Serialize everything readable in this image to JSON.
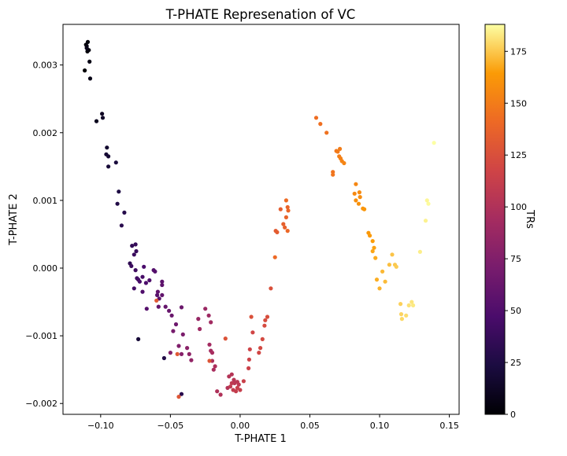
{
  "chart_data": {
    "type": "scatter",
    "title": "T-PHATE Represenation of VC",
    "xlabel": "T-PHATE 1",
    "ylabel": "T-PHATE 2",
    "xlim": [
      -0.127,
      0.157
    ],
    "ylim": [
      -0.00216,
      0.0036
    ],
    "xticks": [
      -0.1,
      -0.05,
      0.0,
      0.05,
      0.1,
      0.15
    ],
    "xtick_labels": [
      "−0.10",
      "−0.05",
      "0.00",
      "0.05",
      "0.10",
      "0.15"
    ],
    "yticks": [
      -0.002,
      -0.001,
      0.0,
      0.001,
      0.002,
      0.003
    ],
    "ytick_labels": [
      "−0.002",
      "−0.001",
      "0.000",
      "0.001",
      "0.002",
      "0.003"
    ],
    "grid": false,
    "colormap": "inferno",
    "colorbar": {
      "label": "TRs",
      "range": [
        0,
        188
      ],
      "ticks": [
        0,
        25,
        50,
        75,
        100,
        125,
        150,
        175
      ],
      "tick_labels": [
        "0",
        "25",
        "50",
        "75",
        "100",
        "125",
        "150",
        "175"
      ]
    },
    "points": [
      [
        -0.1114,
        0.00292,
        0
      ],
      [
        -0.1105,
        0.0033,
        1
      ],
      [
        -0.1095,
        0.0032,
        2
      ],
      [
        -0.1092,
        0.00334,
        3
      ],
      [
        -0.1085,
        0.00322,
        4
      ],
      [
        -0.11,
        0.00328,
        5
      ],
      [
        -0.108,
        0.00305,
        6
      ],
      [
        -0.1075,
        0.0028,
        7
      ],
      [
        -0.11,
        0.00325,
        8
      ],
      [
        -0.103,
        0.00217,
        10
      ],
      [
        -0.099,
        0.00228,
        12
      ],
      [
        -0.0985,
        0.00222,
        14
      ],
      [
        -0.0955,
        0.00178,
        16
      ],
      [
        -0.096,
        0.00168,
        18
      ],
      [
        -0.0945,
        0.00165,
        19
      ],
      [
        -0.0945,
        0.0015,
        20
      ],
      [
        -0.089,
        0.00156,
        22
      ],
      [
        -0.087,
        0.00113,
        25
      ],
      [
        -0.088,
        0.00095,
        27
      ],
      [
        -0.083,
        0.00082,
        29
      ],
      [
        -0.085,
        0.00063,
        31
      ],
      [
        -0.079,
        7e-05,
        33
      ],
      [
        -0.0775,
        0.00033,
        35
      ],
      [
        -0.075,
        0.00035,
        37
      ],
      [
        -0.0745,
        0.00025,
        38
      ],
      [
        -0.076,
        0.0002,
        39
      ],
      [
        -0.078,
        3e-05,
        40
      ],
      [
        -0.075,
        -3e-05,
        41
      ],
      [
        -0.074,
        -0.00015,
        42
      ],
      [
        -0.076,
        -0.0003,
        43
      ],
      [
        -0.073,
        -0.00017,
        44
      ],
      [
        -0.07,
        -0.00013,
        45
      ],
      [
        -0.072,
        -0.0002,
        46
      ],
      [
        -0.069,
        2e-05,
        47
      ],
      [
        -0.0675,
        -0.00022,
        48
      ],
      [
        -0.065,
        -0.00018,
        49
      ],
      [
        -0.07,
        -0.00035,
        50
      ],
      [
        -0.062,
        -3e-05,
        51
      ],
      [
        -0.061,
        -5e-05,
        52
      ],
      [
        -0.067,
        -0.0006,
        53
      ],
      [
        -0.0595,
        -0.0004,
        54
      ],
      [
        -0.058,
        -0.00045,
        55
      ],
      [
        -0.056,
        -0.0002,
        56
      ],
      [
        -0.056,
        -0.00025,
        57
      ],
      [
        -0.059,
        -0.00035,
        58
      ],
      [
        -0.056,
        -0.0004,
        59
      ],
      [
        -0.0585,
        -0.00057,
        60
      ],
      [
        -0.0535,
        -0.00057,
        61
      ],
      [
        -0.051,
        -0.00063,
        62
      ],
      [
        -0.049,
        -0.0007,
        63
      ],
      [
        -0.042,
        -0.00058,
        64
      ],
      [
        -0.046,
        -0.00083,
        65
      ],
      [
        -0.073,
        -0.00105,
        20
      ],
      [
        -0.0545,
        -0.00133,
        27
      ],
      [
        -0.042,
        -0.00186,
        30
      ],
      [
        -0.048,
        -0.00093,
        70
      ],
      [
        -0.041,
        -0.00098,
        72
      ],
      [
        -0.044,
        -0.00115,
        74
      ],
      [
        -0.05,
        -0.00125,
        76
      ],
      [
        -0.042,
        -0.00127,
        78
      ],
      [
        -0.038,
        -0.00118,
        80
      ],
      [
        -0.0365,
        -0.00127,
        82
      ],
      [
        -0.035,
        -0.00136,
        84
      ],
      [
        -0.03,
        -0.00075,
        86
      ],
      [
        -0.025,
        -0.0006,
        88
      ],
      [
        -0.0225,
        -0.0007,
        90
      ],
      [
        -0.029,
        -0.0009,
        91
      ],
      [
        -0.021,
        -0.0008,
        92
      ],
      [
        -0.022,
        -0.00113,
        93
      ],
      [
        -0.021,
        -0.00122,
        94
      ],
      [
        -0.02,
        -0.00125,
        95
      ],
      [
        -0.019,
        -0.0015,
        96
      ],
      [
        -0.02,
        -0.00137,
        97
      ],
      [
        -0.018,
        -0.00145,
        98
      ],
      [
        -0.0165,
        -0.00182,
        99
      ],
      [
        -0.014,
        -0.00187,
        100
      ],
      [
        -0.009,
        -0.00177,
        101
      ],
      [
        -0.008,
        -0.0016,
        102
      ],
      [
        -0.006,
        -0.00157,
        103
      ],
      [
        -0.0045,
        -0.00165,
        104
      ],
      [
        -0.004,
        -0.0017,
        105
      ],
      [
        -0.002,
        -0.00168,
        106
      ],
      [
        -0.001,
        -0.00172,
        107
      ],
      [
        -0.006,
        -0.0017,
        108
      ],
      [
        -0.007,
        -0.00175,
        109
      ],
      [
        -0.005,
        -0.0018,
        110
      ],
      [
        -0.003,
        -0.00182,
        111
      ],
      [
        0.0,
        -0.0018,
        112
      ],
      [
        -0.002,
        -0.00177,
        113
      ],
      [
        0.0025,
        -0.00167,
        114
      ],
      [
        0.006,
        -0.00148,
        115
      ],
      [
        0.0065,
        -0.00135,
        116
      ],
      [
        0.007,
        -0.0012,
        117
      ],
      [
        0.009,
        -0.00095,
        118
      ],
      [
        0.0135,
        -0.00125,
        119
      ],
      [
        0.0145,
        -0.00118,
        120
      ],
      [
        0.016,
        -0.00105,
        121
      ],
      [
        0.0175,
        -0.00085,
        122
      ],
      [
        0.018,
        -0.00077,
        123
      ],
      [
        0.0195,
        -0.00072,
        124
      ],
      [
        0.022,
        -0.0003,
        125
      ],
      [
        0.008,
        -0.00072,
        126
      ],
      [
        -0.0105,
        -0.00104,
        127
      ],
      [
        -0.022,
        -0.00137,
        128
      ],
      [
        -0.044,
        -0.0019,
        129
      ],
      [
        -0.045,
        -0.00127,
        130
      ],
      [
        -0.06,
        -0.00048,
        131
      ],
      [
        0.0255,
        0.00055,
        132
      ],
      [
        0.0265,
        0.00053,
        133
      ],
      [
        0.029,
        0.00087,
        134
      ],
      [
        0.031,
        0.00065,
        135
      ],
      [
        0.032,
        0.0006,
        136
      ],
      [
        0.033,
        0.00075,
        137
      ],
      [
        0.034,
        0.0009,
        138
      ],
      [
        0.0345,
        0.00085,
        139
      ],
      [
        0.034,
        0.00055,
        140
      ],
      [
        0.025,
        0.00016,
        141
      ],
      [
        0.033,
        0.001,
        142
      ],
      [
        0.0545,
        0.00222,
        143
      ],
      [
        0.0575,
        0.00213,
        144
      ],
      [
        0.062,
        0.002,
        145
      ],
      [
        0.0665,
        0.00142,
        146
      ],
      [
        0.0665,
        0.00138,
        147
      ],
      [
        0.069,
        0.00173,
        148
      ],
      [
        0.07,
        0.00172,
        149
      ],
      [
        0.0715,
        0.00176,
        150
      ],
      [
        0.071,
        0.00165,
        151
      ],
      [
        0.072,
        0.00162,
        152
      ],
      [
        0.073,
        0.00158,
        153
      ],
      [
        0.0745,
        0.00155,
        154
      ],
      [
        0.083,
        0.00124,
        155
      ],
      [
        0.082,
        0.0011,
        156
      ],
      [
        0.0855,
        0.00112,
        157
      ],
      [
        0.086,
        0.00105,
        158
      ],
      [
        0.083,
        0.001,
        159
      ],
      [
        0.085,
        0.00095,
        160
      ],
      [
        0.088,
        0.00088,
        161
      ],
      [
        0.089,
        0.00087,
        162
      ],
      [
        0.092,
        0.00052,
        163
      ],
      [
        0.093,
        0.00048,
        164
      ],
      [
        0.095,
        0.0004,
        165
      ],
      [
        0.096,
        0.0003,
        166
      ],
      [
        0.095,
        0.00025,
        167
      ],
      [
        0.097,
        0.00015,
        168
      ],
      [
        0.098,
        -0.00017,
        169
      ],
      [
        0.1,
        -0.0003,
        170
      ],
      [
        0.102,
        -5e-05,
        171
      ],
      [
        0.104,
        -0.0002,
        172
      ],
      [
        0.107,
        5e-05,
        173
      ],
      [
        0.109,
        0.0002,
        174
      ],
      [
        0.111,
        5e-05,
        175
      ],
      [
        0.112,
        2e-05,
        176
      ],
      [
        0.115,
        -0.00053,
        177
      ],
      [
        0.1155,
        -0.00068,
        178
      ],
      [
        0.116,
        -0.00075,
        179
      ],
      [
        0.119,
        -0.0007,
        180
      ],
      [
        0.121,
        -0.00055,
        181
      ],
      [
        0.123,
        -0.0005,
        182
      ],
      [
        0.124,
        -0.00055,
        183
      ],
      [
        0.129,
        0.00024,
        184
      ],
      [
        0.133,
        0.0007,
        185
      ],
      [
        0.134,
        0.001,
        186
      ],
      [
        0.135,
        0.00095,
        187
      ],
      [
        0.139,
        0.00185,
        188
      ]
    ]
  }
}
